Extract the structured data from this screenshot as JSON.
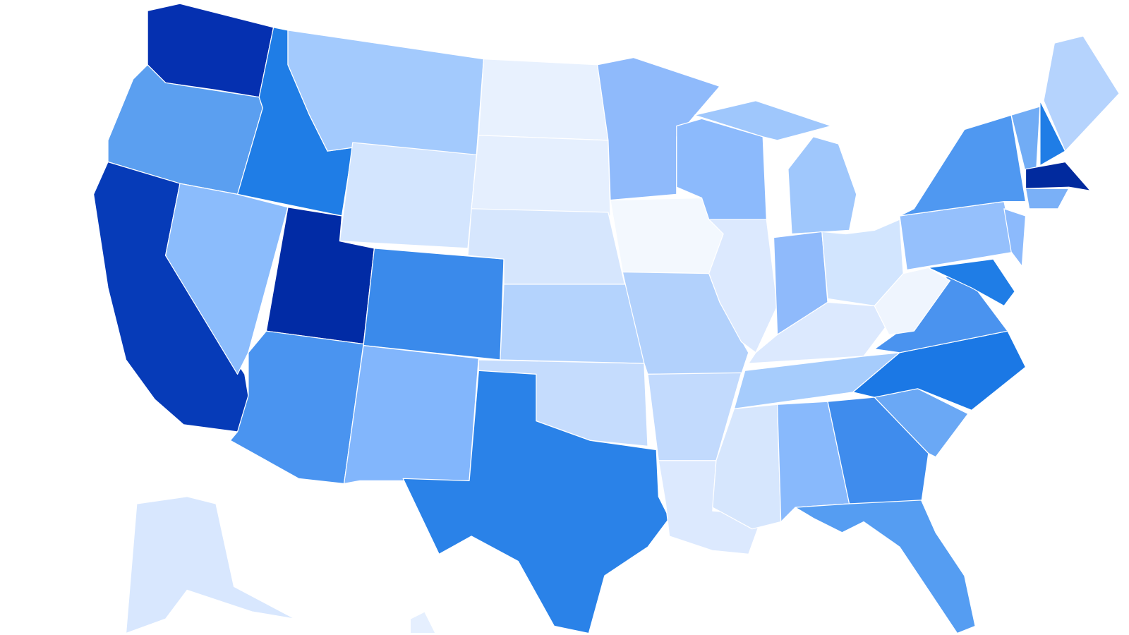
{
  "map": {
    "regions": [
      {
        "color": "#0530b0"
      },
      {
        "color": "#5b9ff0"
      },
      {
        "color": "#063bb8"
      },
      {
        "color": "#1f7de6"
      },
      {
        "color": "#8bbcfc"
      },
      {
        "color": "#a3cafd"
      },
      {
        "color": "#d3e5fe"
      },
      {
        "color": "#012ba5"
      },
      {
        "color": "#4a94f0"
      },
      {
        "color": "#3a8aeb"
      },
      {
        "color": "#82b6fc"
      },
      {
        "color": "#e8f1fe"
      },
      {
        "color": "#e5effe"
      },
      {
        "color": "#d6e6fd"
      },
      {
        "color": "#b4d3fd"
      },
      {
        "color": "#c5dcfd"
      },
      {
        "color": "#2a82e8"
      },
      {
        "color": "#8fbafb"
      },
      {
        "color": "#f3f8fe"
      },
      {
        "color": "#b2d1fc"
      },
      {
        "color": "#c2dafd"
      },
      {
        "color": "#dce9fe"
      },
      {
        "color": "#8cbafc"
      },
      {
        "color": "#dce9fe"
      },
      {
        "color": "#9fc7fc"
      },
      {
        "color": "#9fc7fc"
      },
      {
        "color": "#8fbafb"
      },
      {
        "color": "#d2e5fe"
      },
      {
        "color": "#dce9fe"
      },
      {
        "color": "#a6ccfc"
      },
      {
        "color": "#d6e6fd"
      },
      {
        "color": "#88b9fc"
      },
      {
        "color": "#3f8ced"
      },
      {
        "color": "#559df2"
      },
      {
        "color": "#6aa8f5"
      },
      {
        "color": "#1b78e5"
      },
      {
        "color": "#4a93ef"
      },
      {
        "color": "#eff5fe"
      },
      {
        "color": "#95c0fc"
      },
      {
        "color": "#4f98f1"
      },
      {
        "color": "#8cbafc"
      },
      {
        "color": "#1f7de6"
      },
      {
        "color": "#71acf5"
      },
      {
        "color": "#1f7de6"
      },
      {
        "color": "#b5d3fd"
      },
      {
        "color": "#012a9e"
      },
      {
        "color": "#7ab0f7"
      },
      {
        "color": "#d8e7fe"
      },
      {
        "color": "#e5effe"
      }
    ]
  }
}
